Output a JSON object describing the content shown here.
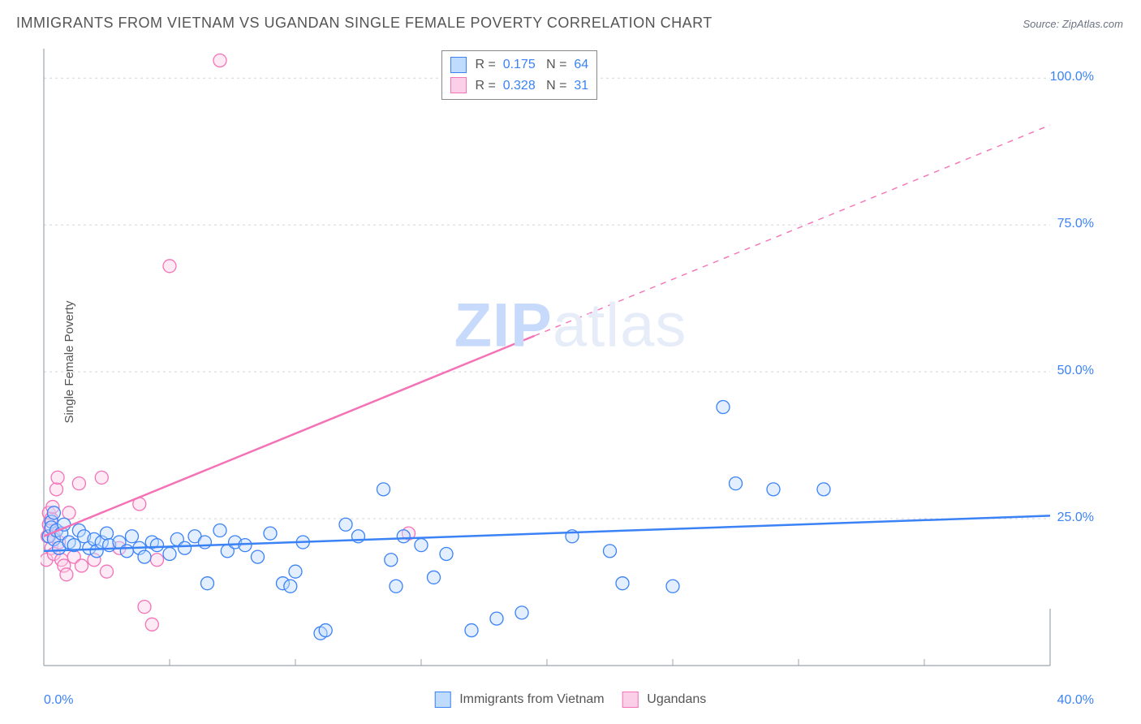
{
  "title": "IMMIGRANTS FROM VIETNAM VS UGANDAN SINGLE FEMALE POVERTY CORRELATION CHART",
  "source_label": "Source: ",
  "source_name": "ZipAtlas.com",
  "ylabel": "Single Female Poverty",
  "watermark_left": "ZIP",
  "watermark_right": "atlas",
  "watermark_color_fill": "#c7dafc",
  "watermark_color_light": "#e6edf9",
  "chart": {
    "type": "scatter",
    "xlim": [
      0,
      40
    ],
    "ylim": [
      0,
      105
    ],
    "x_ticks_minor_step": 5,
    "y_ticks": [
      25,
      50,
      75,
      100
    ],
    "x_tick_labels": {
      "min": "0.0%",
      "max": "40.0%"
    },
    "y_tick_labels": {
      "25": "25.0%",
      "50": "50.0%",
      "75": "75.0%",
      "100": "100.0%"
    },
    "background": "#ffffff",
    "grid_color": "#d1d5db",
    "grid_dash": "3,4",
    "axis_color": "#9ca3af",
    "marker_radius": 8,
    "marker_stroke_width": 1.3,
    "marker_fill_opacity": 0.18,
    "trend_line_width": 2.5,
    "series": [
      {
        "name": "Immigrants from Vietnam",
        "color_stroke": "#3b82f6",
        "color_fill": "#bfdbfe",
        "R": "0.175",
        "N": "64",
        "trend": {
          "x1": 0,
          "y1": 19.5,
          "x2": 40,
          "y2": 25.5,
          "dash_from_x": null
        },
        "points": [
          [
            0.2,
            22
          ],
          [
            0.3,
            24.5
          ],
          [
            0.3,
            23.5
          ],
          [
            0.4,
            26
          ],
          [
            0.4,
            21.5
          ],
          [
            0.5,
            23
          ],
          [
            0.6,
            20
          ],
          [
            0.7,
            22.5
          ],
          [
            0.8,
            24
          ],
          [
            1.0,
            21
          ],
          [
            1.2,
            20.5
          ],
          [
            1.4,
            23
          ],
          [
            1.6,
            22
          ],
          [
            1.8,
            20
          ],
          [
            2.0,
            21.5
          ],
          [
            2.1,
            19.5
          ],
          [
            2.3,
            21
          ],
          [
            2.5,
            22.5
          ],
          [
            2.6,
            20.5
          ],
          [
            3.0,
            21
          ],
          [
            3.3,
            19.5
          ],
          [
            3.5,
            22
          ],
          [
            3.8,
            20
          ],
          [
            4.0,
            18.5
          ],
          [
            4.3,
            21
          ],
          [
            4.5,
            20.5
          ],
          [
            5.0,
            19
          ],
          [
            5.3,
            21.5
          ],
          [
            5.6,
            20
          ],
          [
            6.0,
            22
          ],
          [
            6.4,
            21
          ],
          [
            6.5,
            14
          ],
          [
            7.0,
            23
          ],
          [
            7.3,
            19.5
          ],
          [
            7.6,
            21
          ],
          [
            8.0,
            20.5
          ],
          [
            8.5,
            18.5
          ],
          [
            9.0,
            22.5
          ],
          [
            9.5,
            14
          ],
          [
            9.8,
            13.5
          ],
          [
            10.0,
            16
          ],
          [
            10.3,
            21
          ],
          [
            11.0,
            5.5
          ],
          [
            11.2,
            6
          ],
          [
            12.0,
            24
          ],
          [
            12.5,
            22
          ],
          [
            13.5,
            30
          ],
          [
            13.8,
            18
          ],
          [
            14.0,
            13.5
          ],
          [
            14.3,
            22
          ],
          [
            15.0,
            20.5
          ],
          [
            15.5,
            15
          ],
          [
            16.0,
            19
          ],
          [
            17.0,
            6
          ],
          [
            18.0,
            8
          ],
          [
            19.0,
            9
          ],
          [
            21.0,
            22
          ],
          [
            22.5,
            19.5
          ],
          [
            23.0,
            14
          ],
          [
            25.0,
            13.5
          ],
          [
            27.0,
            44
          ],
          [
            27.5,
            31
          ],
          [
            29.0,
            30
          ],
          [
            31.0,
            30
          ]
        ]
      },
      {
        "name": "Ugandans",
        "color_stroke": "#f472b6",
        "color_fill": "#fbcfe8",
        "R": "0.328",
        "N": "31",
        "trend": {
          "x1": 0,
          "y1": 22,
          "x2": 40,
          "y2": 92,
          "dash_from_x": 19.5
        },
        "points": [
          [
            0.1,
            18
          ],
          [
            0.15,
            22
          ],
          [
            0.2,
            24
          ],
          [
            0.2,
            26
          ],
          [
            0.25,
            23
          ],
          [
            0.3,
            20
          ],
          [
            0.3,
            25
          ],
          [
            0.35,
            27
          ],
          [
            0.4,
            19
          ],
          [
            0.4,
            22
          ],
          [
            0.5,
            30
          ],
          [
            0.55,
            32
          ],
          [
            0.6,
            21
          ],
          [
            0.7,
            18
          ],
          [
            0.8,
            17
          ],
          [
            0.9,
            15.5
          ],
          [
            1.0,
            26
          ],
          [
            1.2,
            18.5
          ],
          [
            1.4,
            31
          ],
          [
            1.5,
            17
          ],
          [
            2.0,
            18
          ],
          [
            2.3,
            32
          ],
          [
            2.5,
            16
          ],
          [
            3.0,
            20
          ],
          [
            3.8,
            27.5
          ],
          [
            4.0,
            10
          ],
          [
            4.3,
            7
          ],
          [
            4.5,
            18
          ],
          [
            5.0,
            68
          ],
          [
            7.0,
            103
          ],
          [
            14.5,
            22.5
          ]
        ]
      }
    ]
  },
  "r_legend": {
    "label_R": "R",
    "label_N": "N",
    "eq": "="
  },
  "bottom_legend": {
    "series1": "Immigrants from Vietnam",
    "series2": "Ugandans"
  }
}
